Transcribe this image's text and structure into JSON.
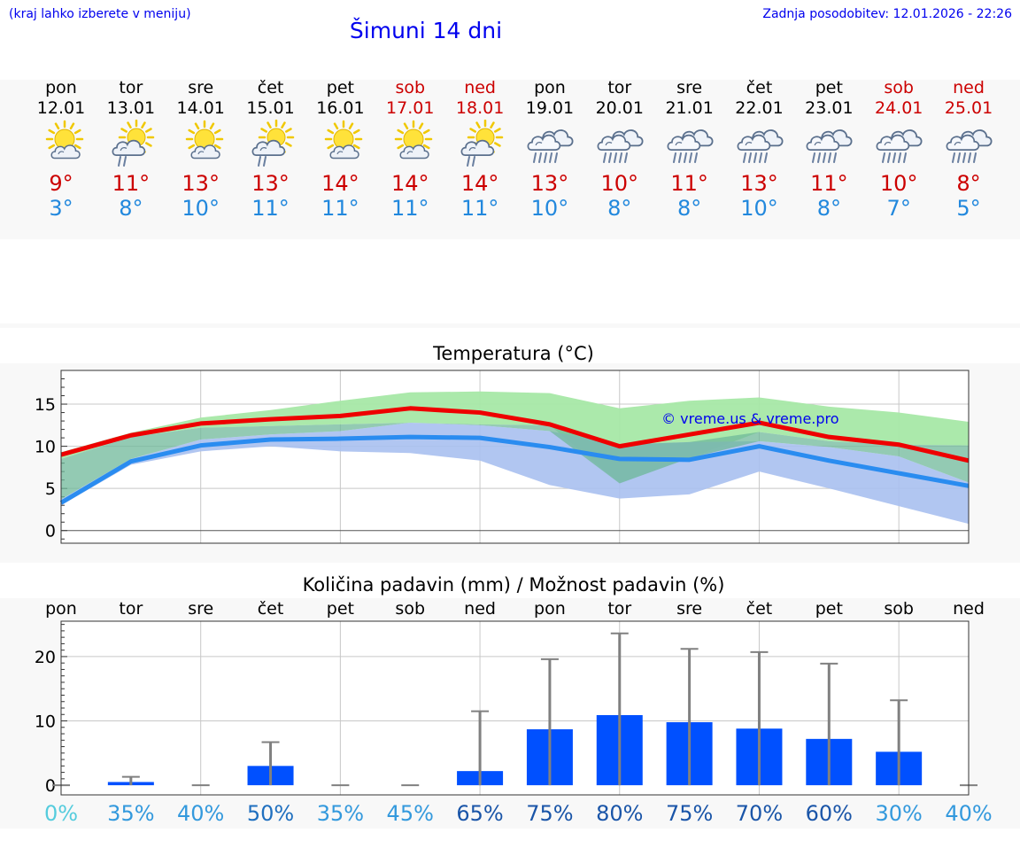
{
  "header": {
    "menu_hint": "(kraj lahko izberete v meniju)",
    "title": "Šimuni 14 dni",
    "last_update": "Zadnja posodobitev: 12.01.2026 - 22:26"
  },
  "days": [
    {
      "name": "pon",
      "date": "12.01",
      "max": "9°",
      "min": "3°",
      "icon": "partly-sunny-icon",
      "weekend": false
    },
    {
      "name": "tor",
      "date": "13.01",
      "max": "11°",
      "min": "8°",
      "icon": "sun-cloud-light-rain-icon",
      "weekend": false
    },
    {
      "name": "sre",
      "date": "14.01",
      "max": "13°",
      "min": "10°",
      "icon": "partly-sunny-icon",
      "weekend": false
    },
    {
      "name": "čet",
      "date": "15.01",
      "max": "13°",
      "min": "11°",
      "icon": "sun-cloud-light-rain-icon",
      "weekend": false
    },
    {
      "name": "pet",
      "date": "16.01",
      "max": "14°",
      "min": "11°",
      "icon": "partly-sunny-icon",
      "weekend": false
    },
    {
      "name": "sob",
      "date": "17.01",
      "max": "14°",
      "min": "11°",
      "icon": "partly-sunny-icon",
      "weekend": true
    },
    {
      "name": "ned",
      "date": "18.01",
      "max": "14°",
      "min": "11°",
      "icon": "sun-cloud-light-rain-icon",
      "weekend": true
    },
    {
      "name": "pon",
      "date": "19.01",
      "max": "13°",
      "min": "10°",
      "icon": "rain-cloud-icon",
      "weekend": false
    },
    {
      "name": "tor",
      "date": "20.01",
      "max": "10°",
      "min": "8°",
      "icon": "rain-cloud-icon",
      "weekend": false
    },
    {
      "name": "sre",
      "date": "21.01",
      "max": "11°",
      "min": "8°",
      "icon": "rain-cloud-icon",
      "weekend": false
    },
    {
      "name": "čet",
      "date": "22.01",
      "max": "13°",
      "min": "10°",
      "icon": "rain-cloud-icon",
      "weekend": false
    },
    {
      "name": "pet",
      "date": "23.01",
      "max": "11°",
      "min": "8°",
      "icon": "rain-cloud-icon",
      "weekend": false
    },
    {
      "name": "sob",
      "date": "24.01",
      "max": "10°",
      "min": "7°",
      "icon": "rain-cloud-icon",
      "weekend": true
    },
    {
      "name": "ned",
      "date": "25.01",
      "max": "8°",
      "min": "5°",
      "icon": "rain-cloud-icon",
      "weekend": true
    }
  ],
  "colors": {
    "max_line": "#ee0000",
    "min_line": "#2a8cf0",
    "max_band": "#a6e8a6",
    "min_band": "#a8c0f0",
    "overlap_band": "#6fb89a",
    "bar": "#0050ff",
    "errbar": "#808080",
    "grid": "#c8c8c8",
    "copyright": "#0000ee"
  },
  "chart_data": [
    {
      "type": "line",
      "title": "Temperatura (°C)",
      "x_labels": [
        "pon",
        "tor",
        "sre",
        "čet",
        "pet",
        "sob",
        "ned",
        "pon",
        "tor",
        "sre",
        "čet",
        "pet",
        "sob",
        "ned"
      ],
      "ylim": [
        -1.5,
        19
      ],
      "yticks": [
        0,
        5,
        10,
        15
      ],
      "annotation": "© vreme.us & vreme.pro",
      "series": [
        {
          "name": "max",
          "values": [
            9,
            11.3,
            12.7,
            13.2,
            13.6,
            14.5,
            14,
            12.6,
            10,
            11.4,
            12.8,
            11.1,
            10.2,
            8.3
          ]
        },
        {
          "name": "min",
          "values": [
            3.3,
            8.2,
            10.1,
            10.8,
            10.9,
            11.1,
            11,
            9.9,
            8.5,
            8.4,
            10,
            8.3,
            6.8,
            5.3
          ]
        }
      ],
      "max_band": {
        "low": [
          8.5,
          11.1,
          12.2,
          12.4,
          12.6,
          12.8,
          12.6,
          12.5,
          5.6,
          8.6,
          11.7,
          10.6,
          10.2,
          10.1
        ],
        "high": [
          9.3,
          11.6,
          13.4,
          14.3,
          15.4,
          16.4,
          16.5,
          16.3,
          14.5,
          15.4,
          15.8,
          14.7,
          14.0,
          12.9
        ]
      },
      "min_band": {
        "low": [
          3.0,
          7.8,
          9.4,
          10.0,
          9.4,
          9.2,
          8.3,
          5.4,
          3.8,
          4.3,
          7.0,
          5.0,
          2.9,
          0.8
        ],
        "high": [
          3.7,
          8.5,
          10.8,
          11.4,
          11.8,
          12.8,
          12.5,
          11.8,
          10.2,
          10.5,
          10.6,
          9.9,
          8.8,
          5.7
        ]
      }
    },
    {
      "type": "bar",
      "title": "Količina padavin (mm) / Možnost padavin (%)",
      "categories": [
        "pon",
        "tor",
        "sre",
        "čet",
        "pet",
        "sob",
        "ned",
        "pon",
        "tor",
        "sre",
        "čet",
        "pet",
        "sob",
        "ned"
      ],
      "ylim": [
        -1.5,
        25.5
      ],
      "yticks": [
        0,
        10,
        20
      ],
      "values": [
        0,
        0.5,
        0,
        3,
        0,
        0,
        2.2,
        8.7,
        10.9,
        9.8,
        8.8,
        7.2,
        5.2,
        0
      ],
      "error_high": [
        0,
        1.3,
        0,
        6.7,
        0,
        0,
        11.5,
        19.6,
        23.6,
        21.2,
        20.7,
        18.9,
        13.2,
        0
      ],
      "probability": [
        "0%",
        "35%",
        "40%",
        "50%",
        "35%",
        "45%",
        "65%",
        "75%",
        "80%",
        "75%",
        "70%",
        "60%",
        "30%",
        "40%"
      ],
      "probability_values": [
        0,
        35,
        40,
        50,
        35,
        45,
        65,
        75,
        80,
        75,
        70,
        60,
        30,
        40
      ]
    }
  ]
}
